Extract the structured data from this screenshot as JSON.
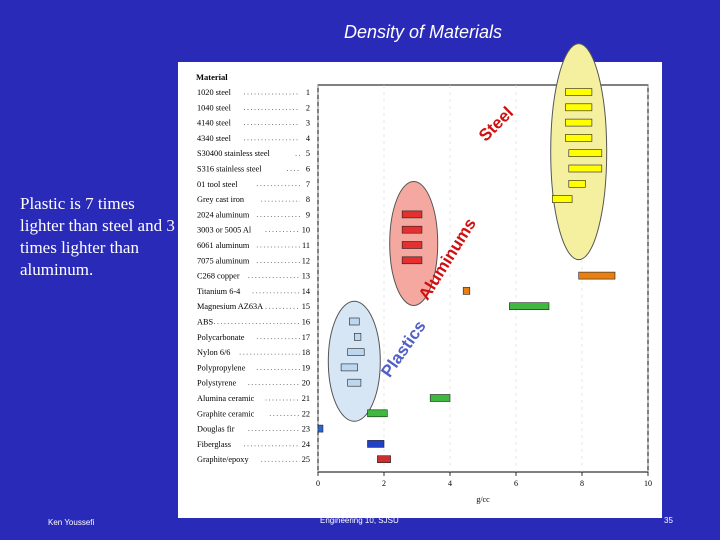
{
  "slide": {
    "title": "Density of Materials",
    "note": "Plastic is 7 times lighter than steel and 3 times lighter than aluminum.",
    "author": "Ken Youssefi",
    "course": "Engineering 10, SJSU",
    "page": "35"
  },
  "colors": {
    "slide_background": "#2a2ab8",
    "steel": "#ffff00",
    "aluminum": "#e53030",
    "copper_titanium": "#e87f10",
    "magnesium_ceramic": "#3fb83f",
    "plastic": "#bcd7f0",
    "wood": "#2a66d8",
    "fiberglass": "#2040c8",
    "composite": "#c83030",
    "steel_group": "#f5f0a0",
    "aluminum_group": "#f5a8a0",
    "plastic_group": "#d6e6f5"
  },
  "chart_data": {
    "type": "bar",
    "orientation": "horizontal-range",
    "header": "Material",
    "xlabel": "g/cc",
    "xlim": [
      0,
      10
    ],
    "xticks": [
      0,
      2,
      4,
      6,
      8,
      10
    ],
    "materials": [
      {
        "num": "1",
        "label": "1020 steel",
        "min": 7.5,
        "max": 8.3,
        "group": "steel"
      },
      {
        "num": "2",
        "label": "1040 steel",
        "min": 7.5,
        "max": 8.3,
        "group": "steel"
      },
      {
        "num": "3",
        "label": "4140 steel",
        "min": 7.5,
        "max": 8.3,
        "group": "steel"
      },
      {
        "num": "4",
        "label": "4340 steel",
        "min": 7.5,
        "max": 8.3,
        "group": "steel"
      },
      {
        "num": "5",
        "label": "S30400 stainless steel",
        "min": 7.6,
        "max": 8.6,
        "group": "steel"
      },
      {
        "num": "6",
        "label": "S316 stainless steel",
        "min": 7.6,
        "max": 8.6,
        "group": "steel"
      },
      {
        "num": "7",
        "label": "01 tool steel",
        "min": 7.6,
        "max": 8.1,
        "group": "steel"
      },
      {
        "num": "8",
        "label": "Grey cast iron",
        "min": 7.1,
        "max": 7.7,
        "group": "steel"
      },
      {
        "num": "9",
        "label": "2024 aluminum",
        "min": 2.55,
        "max": 3.15,
        "group": "aluminum"
      },
      {
        "num": "10",
        "label": "3003 or 5005 Al",
        "min": 2.55,
        "max": 3.15,
        "group": "aluminum"
      },
      {
        "num": "11",
        "label": "6061 aluminum",
        "min": 2.55,
        "max": 3.15,
        "group": "aluminum"
      },
      {
        "num": "12",
        "label": "7075 aluminum",
        "min": 2.55,
        "max": 3.15,
        "group": "aluminum"
      },
      {
        "num": "13",
        "label": "C268 copper",
        "min": 7.9,
        "max": 9.0,
        "group": "copper_titanium"
      },
      {
        "num": "14",
        "label": "Titanium 6-4",
        "min": 4.4,
        "max": 4.6,
        "group": "copper_titanium"
      },
      {
        "num": "15",
        "label": "Magnesium AZ63A",
        "min": 5.8,
        "max": 7.0,
        "group": "magnesium_ceramic"
      },
      {
        "num": "16",
        "label": "ABS",
        "min": 0.95,
        "max": 1.25,
        "group": "plastic"
      },
      {
        "num": "17",
        "label": "Polycarbonate",
        "min": 1.1,
        "max": 1.3,
        "group": "plastic"
      },
      {
        "num": "18",
        "label": "Nylon 6/6",
        "min": 0.9,
        "max": 1.4,
        "group": "plastic"
      },
      {
        "num": "19",
        "label": "Polypropylene",
        "min": 0.7,
        "max": 1.2,
        "group": "plastic"
      },
      {
        "num": "20",
        "label": "Polystyrene",
        "min": 0.9,
        "max": 1.3,
        "group": "plastic"
      },
      {
        "num": "21",
        "label": "Alumina ceramic",
        "min": 3.4,
        "max": 4.0,
        "group": "magnesium_ceramic"
      },
      {
        "num": "22",
        "label": "Graphite ceramic",
        "min": 1.5,
        "max": 2.1,
        "group": "magnesium_ceramic"
      },
      {
        "num": "23",
        "label": "Douglas fir",
        "min": 0.0,
        "max": 0.15,
        "group": "wood"
      },
      {
        "num": "24",
        "label": "Fiberglass",
        "min": 1.5,
        "max": 2.0,
        "group": "fiberglass"
      },
      {
        "num": "25",
        "label": "Graphite/epoxy",
        "min": 1.8,
        "max": 2.2,
        "group": "composite"
      }
    ],
    "group_labels": [
      {
        "text": "Steel",
        "group": "steel"
      },
      {
        "text": "Aluminums",
        "group": "aluminum"
      },
      {
        "text": "Plastics",
        "group": "plastic"
      }
    ]
  }
}
